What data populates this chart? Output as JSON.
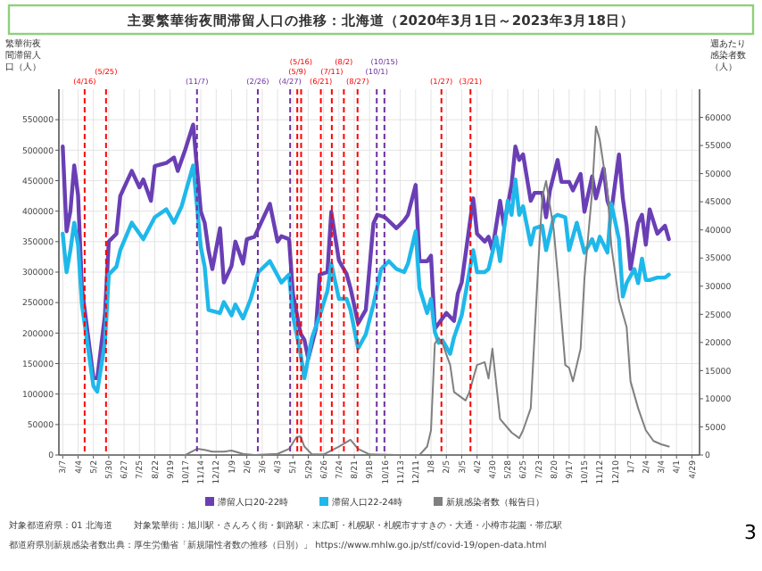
{
  "chart_data": {
    "type": "line",
    "title": "主要繁華街夜間滞留人口の推移：北海道（2020年3月1日～2023年3月18日）",
    "ylabel": "繁華街夜間滞留人口（人）",
    "y2label": "週あたり感染者数（人）",
    "xlim": [
      "2020-02-29",
      "2023-05-13"
    ],
    "xticks": [
      {
        "value": "2020-03-07",
        "label": "3/7"
      },
      {
        "value": "2020-04-04",
        "label": "4/4"
      },
      {
        "value": "2020-05-02",
        "label": "5/2"
      },
      {
        "value": "2020-05-30",
        "label": "5/30"
      },
      {
        "value": "2020-06-27",
        "label": "6/27"
      },
      {
        "value": "2020-07-25",
        "label": "7/25"
      },
      {
        "value": "2020-08-22",
        "label": "8/22"
      },
      {
        "value": "2020-09-19",
        "label": "9/19"
      },
      {
        "value": "2020-10-17",
        "label": "10/17"
      },
      {
        "value": "2020-11-14",
        "label": "11/14"
      },
      {
        "value": "2020-12-12",
        "label": "12/12"
      },
      {
        "value": "2021-01-09",
        "label": "1/9"
      },
      {
        "value": "2021-02-06",
        "label": "2/6"
      },
      {
        "value": "2021-03-06",
        "label": "3/6"
      },
      {
        "value": "2021-04-03",
        "label": "4/3"
      },
      {
        "value": "2021-05-01",
        "label": "5/1"
      },
      {
        "value": "2021-05-29",
        "label": "5/29"
      },
      {
        "value": "2021-06-26",
        "label": "6/26"
      },
      {
        "value": "2021-07-24",
        "label": "7/24"
      },
      {
        "value": "2021-08-21",
        "label": "8/21"
      },
      {
        "value": "2021-09-18",
        "label": "9/18"
      },
      {
        "value": "2021-10-16",
        "label": "10/16"
      },
      {
        "value": "2021-11-13",
        "label": "11/13"
      },
      {
        "value": "2021-12-11",
        "label": "12/11"
      },
      {
        "value": "2022-01-08",
        "label": "1/8"
      },
      {
        "value": "2022-02-05",
        "label": "2/5"
      },
      {
        "value": "2022-03-05",
        "label": "3/5"
      },
      {
        "value": "2022-04-02",
        "label": "4/2"
      },
      {
        "value": "2022-04-30",
        "label": "4/30"
      },
      {
        "value": "2022-05-28",
        "label": "5/28"
      },
      {
        "value": "2022-06-25",
        "label": "6/25"
      },
      {
        "value": "2022-07-23",
        "label": "7/23"
      },
      {
        "value": "2022-08-20",
        "label": "8/20"
      },
      {
        "value": "2022-09-17",
        "label": "9/17"
      },
      {
        "value": "2022-10-15",
        "label": "10/15"
      },
      {
        "value": "2022-11-12",
        "label": "11/12"
      },
      {
        "value": "2022-12-10",
        "label": "12/10"
      },
      {
        "value": "2023-01-07",
        "label": "1/7"
      },
      {
        "value": "2023-02-04",
        "label": "2/4"
      },
      {
        "value": "2023-03-04",
        "label": "3/4"
      },
      {
        "value": "2023-04-01",
        "label": "4/1"
      },
      {
        "value": "2023-04-29",
        "label": "4/29"
      }
    ],
    "ylim": [
      0,
      600000
    ],
    "yticks": [
      0,
      50000,
      100000,
      150000,
      200000,
      250000,
      300000,
      350000,
      400000,
      450000,
      500000,
      550000
    ],
    "y2lim": [
      0,
      65000
    ],
    "y2ticks": [
      0,
      5000,
      10000,
      15000,
      20000,
      25000,
      30000,
      35000,
      40000,
      45000,
      50000,
      55000,
      60000
    ],
    "grid": true,
    "legend": "bottom",
    "marker": "none",
    "line_style": "solid",
    "series": [
      {
        "name": "滞留人口20-22時",
        "color": "#6a3fb5",
        "x": [
          "2020-03-07",
          "2020-03-14",
          "2020-03-21",
          "2020-03-28",
          "2020-04-04",
          "2020-04-11",
          "2020-05-02",
          "2020-05-09",
          "2020-05-23",
          "2020-05-30",
          "2020-06-13",
          "2020-06-20",
          "2020-07-11",
          "2020-07-25",
          "2020-08-01",
          "2020-08-15",
          "2020-08-22",
          "2020-09-12",
          "2020-09-26",
          "2020-10-03",
          "2020-10-17",
          "2020-10-31",
          "2020-11-14",
          "2020-11-21",
          "2020-11-28",
          "2020-12-05",
          "2020-12-19",
          "2020-12-26",
          "2021-01-09",
          "2021-01-16",
          "2021-01-30",
          "2021-02-06",
          "2021-02-20",
          "2021-03-06",
          "2021-03-20",
          "2021-04-03",
          "2021-04-10",
          "2021-04-24",
          "2021-05-01",
          "2021-05-15",
          "2021-05-22",
          "2021-05-29",
          "2021-06-12",
          "2021-06-19",
          "2021-07-03",
          "2021-07-10",
          "2021-07-24",
          "2021-08-07",
          "2021-08-14",
          "2021-08-28",
          "2021-09-11",
          "2021-09-25",
          "2021-10-02",
          "2021-10-16",
          "2021-11-06",
          "2021-11-20",
          "2021-11-27",
          "2021-12-11",
          "2021-12-18",
          "2022-01-01",
          "2022-01-08",
          "2022-01-15",
          "2022-02-05",
          "2022-02-19",
          "2022-02-26",
          "2022-03-05",
          "2022-03-26",
          "2022-04-02",
          "2022-04-16",
          "2022-04-23",
          "2022-04-30",
          "2022-05-14",
          "2022-05-21",
          "2022-06-04",
          "2022-06-11",
          "2022-06-18",
          "2022-06-25",
          "2022-07-09",
          "2022-07-16",
          "2022-07-30",
          "2022-08-06",
          "2022-08-13",
          "2022-08-27",
          "2022-09-03",
          "2022-09-17",
          "2022-09-24",
          "2022-10-08",
          "2022-10-15",
          "2022-10-29",
          "2022-11-05",
          "2022-11-19",
          "2022-11-26",
          "2022-12-03",
          "2022-12-17",
          "2022-12-24",
          "2022-12-31",
          "2023-01-07",
          "2023-01-21",
          "2023-01-28",
          "2023-02-04",
          "2023-02-11",
          "2023-02-25",
          "2023-03-11",
          "2023-03-18"
        ],
        "values": [
          506000,
          367000,
          400000,
          475000,
          426000,
          274000,
          126000,
          126000,
          229000,
          350000,
          363000,
          425000,
          466000,
          439000,
          452000,
          417000,
          474000,
          479000,
          488000,
          466000,
          502000,
          542000,
          399000,
          381000,
          336000,
          305000,
          372000,
          283000,
          310000,
          350000,
          314000,
          354000,
          358000,
          385000,
          412000,
          350000,
          359000,
          354000,
          265000,
          199000,
          189000,
          158000,
          207000,
          296000,
          300000,
          399000,
          319000,
          297000,
          274000,
          216000,
          238000,
          380000,
          394000,
          390000,
          372000,
          385000,
          394000,
          443000,
          318000,
          318000,
          327000,
          207000,
          233000,
          220000,
          265000,
          283000,
          421000,
          363000,
          350000,
          358000,
          336000,
          417000,
          376000,
          443000,
          506000,
          484000,
          493000,
          417000,
          430000,
          430000,
          390000,
          434000,
          484000,
          448000,
          448000,
          434000,
          461000,
          399000,
          457000,
          421000,
          470000,
          417000,
          399000,
          493000,
          421000,
          376000,
          305000,
          381000,
          394000,
          345000,
          403000,
          363000,
          376000,
          354000
        ]
      },
      {
        "name": "滞留人口22-24時",
        "color": "#1fb8ea",
        "x": [
          "2020-03-07",
          "2020-03-14",
          "2020-03-21",
          "2020-03-28",
          "2020-04-04",
          "2020-04-11",
          "2020-05-02",
          "2020-05-09",
          "2020-05-23",
          "2020-05-30",
          "2020-06-13",
          "2020-06-20",
          "2020-07-11",
          "2020-08-01",
          "2020-08-22",
          "2020-09-12",
          "2020-09-26",
          "2020-10-10",
          "2020-10-31",
          "2020-11-14",
          "2020-11-21",
          "2020-11-28",
          "2020-12-19",
          "2020-12-26",
          "2021-01-09",
          "2021-01-16",
          "2021-01-30",
          "2021-02-13",
          "2021-02-27",
          "2021-03-20",
          "2021-04-10",
          "2021-04-24",
          "2021-05-01",
          "2021-05-15",
          "2021-05-22",
          "2021-06-05",
          "2021-06-19",
          "2021-07-03",
          "2021-07-10",
          "2021-07-24",
          "2021-08-07",
          "2021-08-14",
          "2021-08-28",
          "2021-09-11",
          "2021-09-25",
          "2021-10-09",
          "2021-10-23",
          "2021-11-06",
          "2021-11-20",
          "2021-11-27",
          "2021-12-11",
          "2021-12-18",
          "2022-01-01",
          "2022-01-08",
          "2022-01-15",
          "2022-01-22",
          "2022-01-29",
          "2022-02-12",
          "2022-02-19",
          "2022-03-05",
          "2022-03-26",
          "2022-04-02",
          "2022-04-16",
          "2022-04-23",
          "2022-05-07",
          "2022-05-14",
          "2022-05-28",
          "2022-06-04",
          "2022-06-11",
          "2022-06-18",
          "2022-06-25",
          "2022-07-09",
          "2022-07-16",
          "2022-07-30",
          "2022-08-06",
          "2022-08-20",
          "2022-08-27",
          "2022-09-10",
          "2022-09-17",
          "2022-10-01",
          "2022-10-15",
          "2022-10-29",
          "2022-11-05",
          "2022-11-12",
          "2022-11-26",
          "2022-12-03",
          "2022-12-17",
          "2022-12-24",
          "2022-12-31",
          "2023-01-14",
          "2023-01-21",
          "2023-01-28",
          "2023-02-04",
          "2023-02-11",
          "2023-02-25",
          "2023-03-11",
          "2023-03-18"
        ],
        "values": [
          363000,
          300000,
          336000,
          381000,
          345000,
          247000,
          113000,
          104000,
          184000,
          296000,
          309000,
          336000,
          381000,
          354000,
          390000,
          403000,
          381000,
          408000,
          475000,
          341000,
          309000,
          238000,
          233000,
          251000,
          229000,
          247000,
          224000,
          256000,
          300000,
          318000,
          283000,
          296000,
          229000,
          166000,
          126000,
          193000,
          229000,
          269000,
          314000,
          256000,
          256000,
          238000,
          175000,
          198000,
          247000,
          305000,
          318000,
          305000,
          300000,
          314000,
          367000,
          274000,
          233000,
          256000,
          202000,
          184000,
          188000,
          166000,
          193000,
          229000,
          336000,
          300000,
          300000,
          305000,
          358000,
          318000,
          417000,
          394000,
          452000,
          394000,
          408000,
          345000,
          372000,
          376000,
          336000,
          390000,
          394000,
          390000,
          336000,
          381000,
          332000,
          354000,
          336000,
          358000,
          332000,
          412000,
          354000,
          260000,
          282000,
          305000,
          282000,
          322000,
          287000,
          287000,
          291000,
          291000,
          296000
        ]
      },
      {
        "name": "新規感染者数（報告日）",
        "color": "#808080",
        "axis": "y2",
        "x": [
          "2020-03-07",
          "2020-07-25",
          "2020-10-17",
          "2020-11-07",
          "2020-11-21",
          "2020-12-05",
          "2020-12-26",
          "2021-01-09",
          "2021-01-30",
          "2021-02-20",
          "2021-04-03",
          "2021-04-24",
          "2021-05-08",
          "2021-05-15",
          "2021-05-22",
          "2021-06-05",
          "2021-06-26",
          "2021-07-24",
          "2021-08-14",
          "2021-08-28",
          "2021-09-18",
          "2021-11-06",
          "2021-12-18",
          "2022-01-01",
          "2022-01-08",
          "2022-01-15",
          "2022-01-22",
          "2022-01-29",
          "2022-02-12",
          "2022-02-19",
          "2022-03-12",
          "2022-03-19",
          "2022-04-02",
          "2022-04-16",
          "2022-04-23",
          "2022-04-30",
          "2022-05-14",
          "2022-06-04",
          "2022-06-18",
          "2022-06-25",
          "2022-07-09",
          "2022-07-23",
          "2022-07-30",
          "2022-08-06",
          "2022-08-20",
          "2022-08-27",
          "2022-09-10",
          "2022-09-17",
          "2022-09-24",
          "2022-10-08",
          "2022-10-15",
          "2022-10-29",
          "2022-11-05",
          "2022-11-12",
          "2022-11-26",
          "2022-12-03",
          "2022-12-17",
          "2022-12-31",
          "2023-01-07",
          "2023-01-21",
          "2023-02-04",
          "2023-02-18",
          "2023-03-04",
          "2023-03-18"
        ],
        "values": [
          0,
          0,
          0,
          1100,
          900,
          600,
          600,
          800,
          200,
          0,
          200,
          1100,
          3200,
          3300,
          1500,
          100,
          100,
          1500,
          2700,
          1100,
          100,
          0,
          0,
          1500,
          4400,
          19800,
          20800,
          19800,
          16000,
          11200,
          9700,
          11200,
          16000,
          16500,
          13600,
          18900,
          6400,
          4000,
          3000,
          4400,
          8300,
          34300,
          45800,
          48700,
          40000,
          32400,
          16000,
          15500,
          13100,
          18900,
          31400,
          46800,
          58400,
          56000,
          46800,
          37200,
          27500,
          22700,
          13100,
          8300,
          4400,
          2500,
          1900,
          1500
        ]
      }
    ],
    "ref_lines": [
      {
        "axis": "x",
        "value": "2020-04-16",
        "label": "(4/16)",
        "color": "#ff0000",
        "line_style": "dashed"
      },
      {
        "axis": "x",
        "value": "2020-05-25",
        "label": "(5/25)",
        "color": "#ff0000",
        "line_style": "dashed"
      },
      {
        "axis": "x",
        "value": "2020-11-07",
        "label": "(11/7)",
        "color": "#7030a0",
        "line_style": "dashed"
      },
      {
        "axis": "x",
        "value": "2021-02-26",
        "label": "(2/26)",
        "color": "#7030a0",
        "line_style": "dashed"
      },
      {
        "axis": "x",
        "value": "2021-04-26",
        "label": "(4/27)",
        "color": "#7030a0",
        "line_style": "dashed"
      },
      {
        "axis": "x",
        "value": "2021-05-09",
        "label": "(5/9)",
        "color": "#ff0000",
        "line_style": "dashed"
      },
      {
        "axis": "x",
        "value": "2021-05-16",
        "label": "(5/16)",
        "color": "#ff0000",
        "line_style": "dashed"
      },
      {
        "axis": "x",
        "value": "2021-06-21",
        "label": "(6/21)",
        "color": "#ff0000",
        "line_style": "dashed"
      },
      {
        "axis": "x",
        "value": "2021-07-11",
        "label": "(7/11)",
        "color": "#ff0000",
        "line_style": "dashed"
      },
      {
        "axis": "x",
        "value": "2021-08-02",
        "label": "(8/2)",
        "color": "#ff0000",
        "line_style": "dashed"
      },
      {
        "axis": "x",
        "value": "2021-08-27",
        "label": "(8/27)",
        "color": "#ff0000",
        "line_style": "dashed"
      },
      {
        "axis": "x",
        "value": "2021-10-01",
        "label": "(10/1)",
        "color": "#7030a0",
        "line_style": "dashed"
      },
      {
        "axis": "x",
        "value": "2021-10-15",
        "label": "(10/15)",
        "color": "#7030a0",
        "line_style": "dashed"
      },
      {
        "axis": "x",
        "value": "2022-01-27",
        "label": "(1/27)",
        "color": "#ff0000",
        "line_style": "dashed"
      },
      {
        "axis": "x",
        "value": "2022-03-21",
        "label": "(3/21)",
        "color": "#ff0000",
        "line_style": "dashed"
      }
    ],
    "annotations": [
      "対象都道府県：01 北海道",
      "対象繁華街：旭川駅・さんろく街・釧路駅・末広町・札幌駅・札幌市すすきの・大通・小樽市花園・帯広駅",
      "都道府県別新規感染者数出典：厚生労働省「新規陽性者数の推移（日別）」 https://www.mhlw.go.jp/stf/covid-19/open-data.html",
      "3"
    ]
  }
}
